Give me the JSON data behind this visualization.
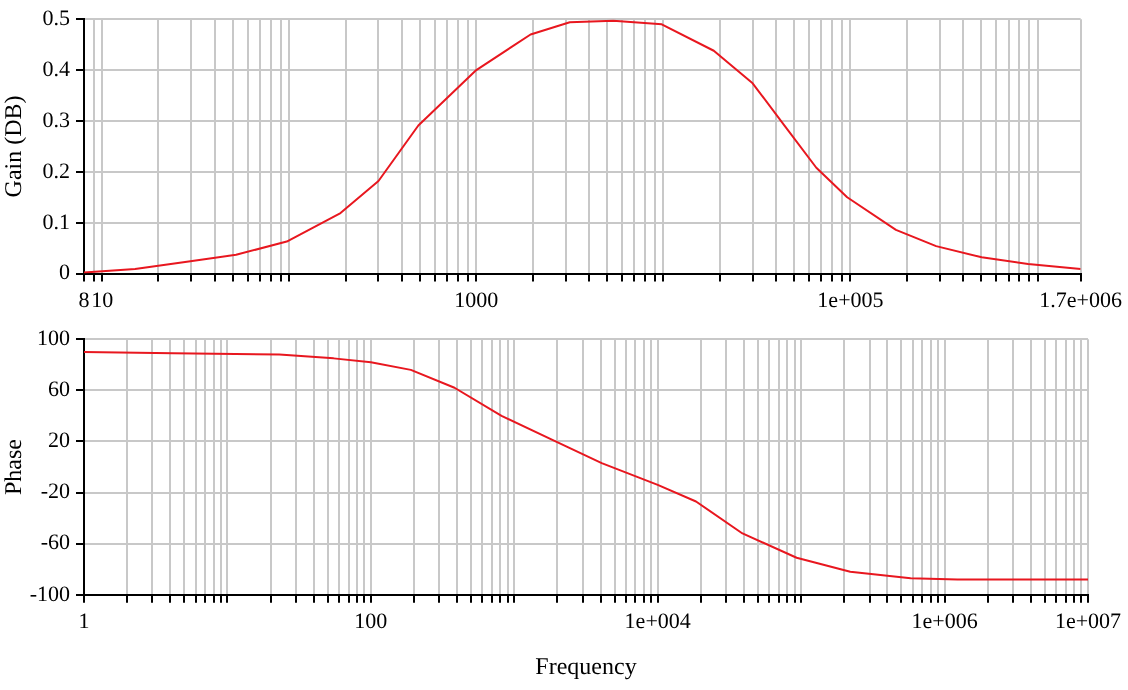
{
  "chart_data": [
    {
      "type": "line",
      "ylabel": "Gain (DB)",
      "log": "x",
      "grid": true,
      "legend": false,
      "marker": "none",
      "line_style": "solid",
      "xlim": [
        8,
        1700000
      ],
      "ylim": [
        0,
        0.5
      ],
      "xticks": [
        8,
        {
          "value": 9,
          "label": null
        },
        10,
        {
          "value": 20,
          "label": null
        },
        {
          "value": 30,
          "label": null
        },
        {
          "value": 40,
          "label": null
        },
        {
          "value": 50,
          "label": null
        },
        {
          "value": 60,
          "label": null
        },
        {
          "value": 70,
          "label": null
        },
        {
          "value": 80,
          "label": null
        },
        {
          "value": 90,
          "label": null
        },
        {
          "value": 100,
          "label": null
        },
        {
          "value": 200,
          "label": null
        },
        {
          "value": 300,
          "label": null
        },
        {
          "value": 400,
          "label": null
        },
        {
          "value": 500,
          "label": null
        },
        {
          "value": 600,
          "label": null
        },
        {
          "value": 700,
          "label": null
        },
        {
          "value": 800,
          "label": null
        },
        {
          "value": 900,
          "label": null
        },
        1000,
        {
          "value": 2000,
          "label": null
        },
        {
          "value": 3000,
          "label": null
        },
        {
          "value": 4000,
          "label": null
        },
        {
          "value": 5000,
          "label": null
        },
        {
          "value": 6000,
          "label": null
        },
        {
          "value": 7000,
          "label": null
        },
        {
          "value": 8000,
          "label": null
        },
        {
          "value": 9000,
          "label": null
        },
        {
          "value": 10000,
          "label": null
        },
        {
          "value": 20000,
          "label": null
        },
        {
          "value": 30000,
          "label": null
        },
        {
          "value": 40000,
          "label": null
        },
        {
          "value": 50000,
          "label": null
        },
        {
          "value": 60000,
          "label": null
        },
        {
          "value": 70000,
          "label": null
        },
        {
          "value": 80000,
          "label": null
        },
        {
          "value": 90000,
          "label": null
        },
        {
          "value": 100000,
          "label": "1e+005"
        },
        {
          "value": 200000,
          "label": null
        },
        {
          "value": 300000,
          "label": null
        },
        {
          "value": 400000,
          "label": null
        },
        {
          "value": 500000,
          "label": null
        },
        {
          "value": 600000,
          "label": null
        },
        {
          "value": 700000,
          "label": null
        },
        {
          "value": 800000,
          "label": null
        },
        {
          "value": 900000,
          "label": null
        },
        {
          "value": 1000000,
          "label": null
        },
        {
          "value": 1700000,
          "label": "1.7e+006"
        }
      ],
      "yticks": [
        0,
        0.1,
        0.2,
        0.3,
        0.4,
        0.5
      ],
      "series": [
        {
          "color": "#e8171f",
          "x": [
            8,
            15,
            29,
            52,
            97,
            188,
            300,
            490,
            1000,
            1950,
            3160,
            5400,
            9800,
            18600,
            30000,
            44400,
            65700,
            96000,
            175000,
            287000,
            503000,
            890000,
            1700000
          ],
          "values": [
            0.002,
            0.009,
            0.024,
            0.037,
            0.063,
            0.119,
            0.182,
            0.291,
            0.4,
            0.47,
            0.494,
            0.497,
            0.49,
            0.438,
            0.374,
            0.291,
            0.208,
            0.15,
            0.086,
            0.054,
            0.032,
            0.019,
            0.009
          ]
        }
      ]
    },
    {
      "type": "line",
      "ylabel": "Phase",
      "xlabel": "Frequency",
      "log": "x",
      "grid": true,
      "legend": false,
      "marker": "none",
      "line_style": "solid",
      "xlim": [
        1,
        10000000
      ],
      "ylim": [
        -100,
        100
      ],
      "xticks": [
        1,
        {
          "value": 2,
          "label": null
        },
        {
          "value": 3,
          "label": null
        },
        {
          "value": 4,
          "label": null
        },
        {
          "value": 5,
          "label": null
        },
        {
          "value": 6,
          "label": null
        },
        {
          "value": 7,
          "label": null
        },
        {
          "value": 8,
          "label": null
        },
        {
          "value": 9,
          "label": null
        },
        {
          "value": 10,
          "label": null
        },
        {
          "value": 20,
          "label": null
        },
        {
          "value": 30,
          "label": null
        },
        {
          "value": 40,
          "label": null
        },
        {
          "value": 50,
          "label": null
        },
        {
          "value": 60,
          "label": null
        },
        {
          "value": 70,
          "label": null
        },
        {
          "value": 80,
          "label": null
        },
        {
          "value": 90,
          "label": null
        },
        100,
        {
          "value": 200,
          "label": null
        },
        {
          "value": 300,
          "label": null
        },
        {
          "value": 400,
          "label": null
        },
        {
          "value": 500,
          "label": null
        },
        {
          "value": 600,
          "label": null
        },
        {
          "value": 700,
          "label": null
        },
        {
          "value": 800,
          "label": null
        },
        {
          "value": 900,
          "label": null
        },
        {
          "value": 1000,
          "label": null
        },
        {
          "value": 2000,
          "label": null
        },
        {
          "value": 3000,
          "label": null
        },
        {
          "value": 4000,
          "label": null
        },
        {
          "value": 5000,
          "label": null
        },
        {
          "value": 6000,
          "label": null
        },
        {
          "value": 7000,
          "label": null
        },
        {
          "value": 8000,
          "label": null
        },
        {
          "value": 9000,
          "label": null
        },
        {
          "value": 10000,
          "label": "1e+004"
        },
        {
          "value": 20000,
          "label": null
        },
        {
          "value": 30000,
          "label": null
        },
        {
          "value": 40000,
          "label": null
        },
        {
          "value": 50000,
          "label": null
        },
        {
          "value": 60000,
          "label": null
        },
        {
          "value": 70000,
          "label": null
        },
        {
          "value": 80000,
          "label": null
        },
        {
          "value": 90000,
          "label": null
        },
        {
          "value": 100000,
          "label": null
        },
        {
          "value": 200000,
          "label": null
        },
        {
          "value": 300000,
          "label": null
        },
        {
          "value": 400000,
          "label": null
        },
        {
          "value": 500000,
          "label": null
        },
        {
          "value": 600000,
          "label": null
        },
        {
          "value": 700000,
          "label": null
        },
        {
          "value": 800000,
          "label": null
        },
        {
          "value": 900000,
          "label": null
        },
        {
          "value": 1000000,
          "label": "1e+006"
        },
        {
          "value": 2000000,
          "label": null
        },
        {
          "value": 3000000,
          "label": null
        },
        {
          "value": 4000000,
          "label": null
        },
        {
          "value": 5000000,
          "label": null
        },
        {
          "value": 6000000,
          "label": null
        },
        {
          "value": 7000000,
          "label": null
        },
        {
          "value": 8000000,
          "label": null
        },
        {
          "value": 9000000,
          "label": null
        },
        {
          "value": 10000000,
          "label": "1e+007"
        }
      ],
      "yticks": [
        -100,
        -60,
        -20,
        20,
        60,
        100
      ],
      "series": [
        {
          "color": "#e8171f",
          "x": [
            1,
            4.2,
            23,
            55,
            100,
            190,
            383,
            815,
            1940,
            4070,
            10000,
            18500,
            39000,
            93000,
            220000,
            580000,
            1230000,
            10000000
          ],
          "values": [
            90,
            89,
            88,
            85,
            82,
            76,
            62,
            40,
            20,
            3,
            -14,
            -27,
            -52,
            -71,
            -82,
            -87,
            -88,
            -88
          ]
        }
      ]
    }
  ]
}
